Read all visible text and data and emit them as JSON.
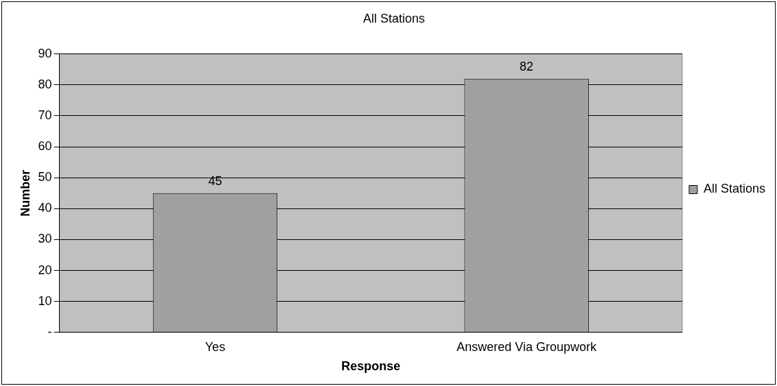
{
  "chart_data": {
    "type": "bar",
    "title": "All Stations",
    "xlabel": "Response",
    "ylabel": "Number",
    "categories": [
      "Yes",
      "Answered Via Groupwork"
    ],
    "series": [
      {
        "name": "All Stations",
        "color": "#a0a0a0",
        "values": [
          45,
          82
        ]
      }
    ],
    "ylim": [
      0,
      90
    ],
    "yticks": [
      {
        "value": 0,
        "label": "-"
      },
      10,
      20,
      30,
      40,
      50,
      60,
      70,
      80,
      90
    ],
    "grid": "y",
    "legend": "right",
    "data_labels": true
  }
}
